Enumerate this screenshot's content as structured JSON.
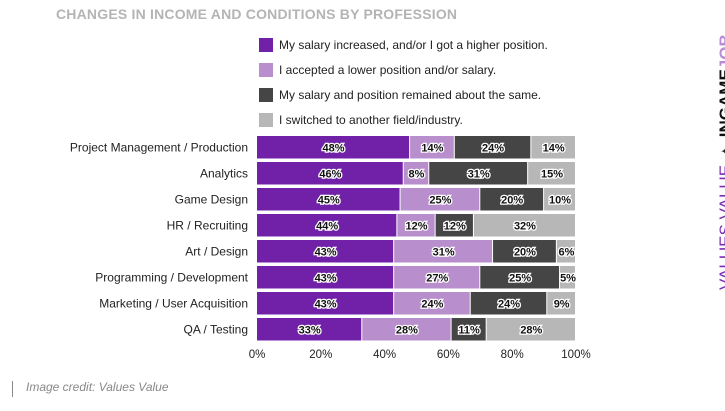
{
  "title": "CHANGES IN INCOME AND CONDITIONS BY PROFESSION",
  "credit": "Image credit: Values Value",
  "brand": {
    "left_text": "VALUES VALUE",
    "star": "✦",
    "logo_a": "IN",
    "logo_b": "GAME",
    "logo_c": "JOB"
  },
  "chart_data": {
    "type": "bar",
    "orientation": "horizontal",
    "stacked": true,
    "categories": [
      "Project Management / Production",
      "Analytics",
      "Game Design",
      "HR / Recruiting",
      "Art / Design",
      "Programming / Development",
      "Marketing / User Acquisition",
      "QA / Testing"
    ],
    "series": [
      {
        "name": "My salary increased, and/or I got a higher position.",
        "color": "#7121a8",
        "values": [
          48,
          46,
          45,
          44,
          43,
          43,
          43,
          33
        ]
      },
      {
        "name": "I accepted a lower position and/or salary.",
        "color": "#b88fcc",
        "values": [
          14,
          8,
          25,
          12,
          31,
          27,
          24,
          28
        ]
      },
      {
        "name": "My salary and position remained about the same.",
        "color": "#454545",
        "values": [
          24,
          31,
          20,
          12,
          20,
          25,
          24,
          11
        ]
      },
      {
        "name": "I switched to another field/industry.",
        "color": "#b7b7b7",
        "values": [
          14,
          15,
          10,
          32,
          6,
          5,
          9,
          28
        ]
      }
    ],
    "xlim": [
      0,
      100
    ],
    "xticks": [
      "0%",
      "20%",
      "40%",
      "60%",
      "80%",
      "100%"
    ],
    "value_suffix": "%",
    "legend_position": "top",
    "grid": false
  }
}
